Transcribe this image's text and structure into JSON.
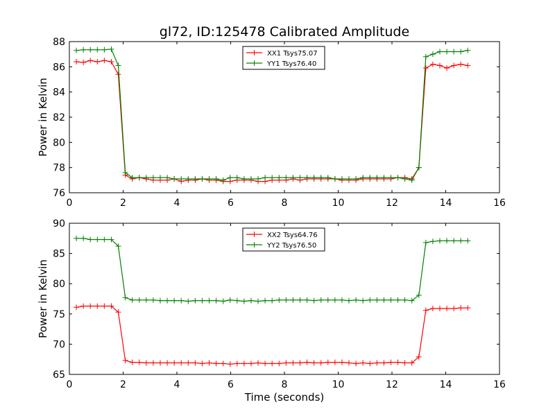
{
  "title": "gl72, ID:125478 Calibrated Amplitude",
  "colors": {
    "xx": "#ff0000",
    "yy": "#008000",
    "frame": "#000000"
  },
  "chart_data": [
    {
      "type": "line",
      "ylabel": "Power in Kelvin",
      "xlabel": "",
      "xlim": [
        0,
        16
      ],
      "ylim": [
        76,
        88
      ],
      "xticks": [
        0,
        2,
        4,
        6,
        8,
        10,
        12,
        14,
        16
      ],
      "yticks": [
        76,
        78,
        80,
        82,
        84,
        86,
        88
      ],
      "legend_position": "top-center",
      "x": [
        0.26,
        0.52,
        0.78,
        1.04,
        1.3,
        1.56,
        1.82,
        2.08,
        2.34,
        2.6,
        2.86,
        3.12,
        3.38,
        3.64,
        3.9,
        4.16,
        4.42,
        4.68,
        4.94,
        5.2,
        5.46,
        5.72,
        5.98,
        6.24,
        6.5,
        6.76,
        7.02,
        7.28,
        7.54,
        7.8,
        8.06,
        8.32,
        8.58,
        8.84,
        9.1,
        9.36,
        9.62,
        9.88,
        10.14,
        10.4,
        10.66,
        10.92,
        11.18,
        11.44,
        11.7,
        11.96,
        12.22,
        12.48,
        12.74,
        13.0,
        13.26,
        13.52,
        13.78,
        14.04,
        14.3,
        14.56,
        14.82
      ],
      "series": [
        {
          "name": "XX1 Tsys75.07",
          "color": "#ff0000",
          "values": [
            86.4,
            86.35,
            86.5,
            86.4,
            86.5,
            86.4,
            85.4,
            77.4,
            77.1,
            77.2,
            77.1,
            77.0,
            77.0,
            77.0,
            77.1,
            76.9,
            77.0,
            77.0,
            77.1,
            77.0,
            77.0,
            76.9,
            76.9,
            77.0,
            77.0,
            77.0,
            76.9,
            76.9,
            77.0,
            77.0,
            77.0,
            77.1,
            77.0,
            77.1,
            77.1,
            77.1,
            77.1,
            77.1,
            77.0,
            77.0,
            77.0,
            77.1,
            77.1,
            77.1,
            77.1,
            77.1,
            77.2,
            77.2,
            77.1,
            78.0,
            85.9,
            86.2,
            86.1,
            85.9,
            86.1,
            86.2,
            86.1
          ]
        },
        {
          "name": "YY1 Tsys76.40",
          "color": "#008000",
          "values": [
            87.3,
            87.35,
            87.35,
            87.35,
            87.35,
            87.4,
            86.1,
            77.6,
            77.2,
            77.2,
            77.2,
            77.2,
            77.2,
            77.2,
            77.1,
            77.1,
            77.1,
            77.1,
            77.1,
            77.1,
            77.1,
            77.0,
            77.2,
            77.2,
            77.1,
            77.1,
            77.1,
            77.2,
            77.2,
            77.2,
            77.2,
            77.2,
            77.2,
            77.2,
            77.2,
            77.2,
            77.2,
            77.1,
            77.1,
            77.1,
            77.1,
            77.2,
            77.2,
            77.2,
            77.2,
            77.2,
            77.2,
            77.1,
            77.0,
            78.0,
            86.8,
            87.0,
            87.2,
            87.2,
            87.2,
            87.2,
            87.3
          ]
        }
      ]
    },
    {
      "type": "line",
      "ylabel": "Power in Kelvin",
      "xlabel": "Time (seconds)",
      "xlim": [
        0,
        16
      ],
      "ylim": [
        65,
        90
      ],
      "xticks": [
        0,
        2,
        4,
        6,
        8,
        10,
        12,
        14,
        16
      ],
      "yticks": [
        65,
        70,
        75,
        80,
        85,
        90
      ],
      "legend_position": "top-center",
      "x": [
        0.26,
        0.52,
        0.78,
        1.04,
        1.3,
        1.56,
        1.82,
        2.08,
        2.34,
        2.6,
        2.86,
        3.12,
        3.38,
        3.64,
        3.9,
        4.16,
        4.42,
        4.68,
        4.94,
        5.2,
        5.46,
        5.72,
        5.98,
        6.24,
        6.5,
        6.76,
        7.02,
        7.28,
        7.54,
        7.8,
        8.06,
        8.32,
        8.58,
        8.84,
        9.1,
        9.36,
        9.62,
        9.88,
        10.14,
        10.4,
        10.66,
        10.92,
        11.18,
        11.44,
        11.7,
        11.96,
        12.22,
        12.48,
        12.74,
        13.0,
        13.26,
        13.52,
        13.78,
        14.04,
        14.3,
        14.56,
        14.82
      ],
      "series": [
        {
          "name": "XX2 Tsys64.76",
          "color": "#ff0000",
          "values": [
            76.1,
            76.3,
            76.3,
            76.3,
            76.3,
            76.3,
            75.3,
            67.3,
            67.0,
            67.0,
            66.9,
            66.9,
            66.9,
            66.9,
            66.9,
            66.9,
            66.9,
            66.9,
            66.8,
            66.9,
            66.8,
            66.8,
            66.7,
            66.8,
            66.8,
            66.8,
            66.9,
            66.8,
            66.8,
            66.8,
            66.9,
            66.9,
            66.9,
            67.0,
            66.9,
            66.9,
            67.0,
            67.0,
            67.0,
            66.9,
            66.8,
            66.9,
            66.8,
            66.9,
            66.9,
            67.0,
            67.0,
            66.9,
            66.9,
            67.9,
            75.6,
            75.9,
            75.9,
            75.9,
            75.9,
            76.0,
            76.0
          ]
        },
        {
          "name": "YY2 Tsys76.50",
          "color": "#008000",
          "values": [
            87.5,
            87.5,
            87.3,
            87.3,
            87.3,
            87.3,
            86.2,
            77.7,
            77.3,
            77.3,
            77.3,
            77.3,
            77.2,
            77.2,
            77.2,
            77.2,
            77.1,
            77.2,
            77.2,
            77.2,
            77.2,
            77.1,
            77.3,
            77.2,
            77.1,
            77.2,
            77.1,
            77.2,
            77.2,
            77.3,
            77.3,
            77.3,
            77.3,
            77.3,
            77.2,
            77.3,
            77.3,
            77.3,
            77.3,
            77.2,
            77.3,
            77.2,
            77.3,
            77.3,
            77.3,
            77.3,
            77.3,
            77.3,
            77.2,
            78.1,
            86.8,
            87.0,
            87.1,
            87.1,
            87.1,
            87.1,
            87.1
          ]
        }
      ]
    }
  ]
}
